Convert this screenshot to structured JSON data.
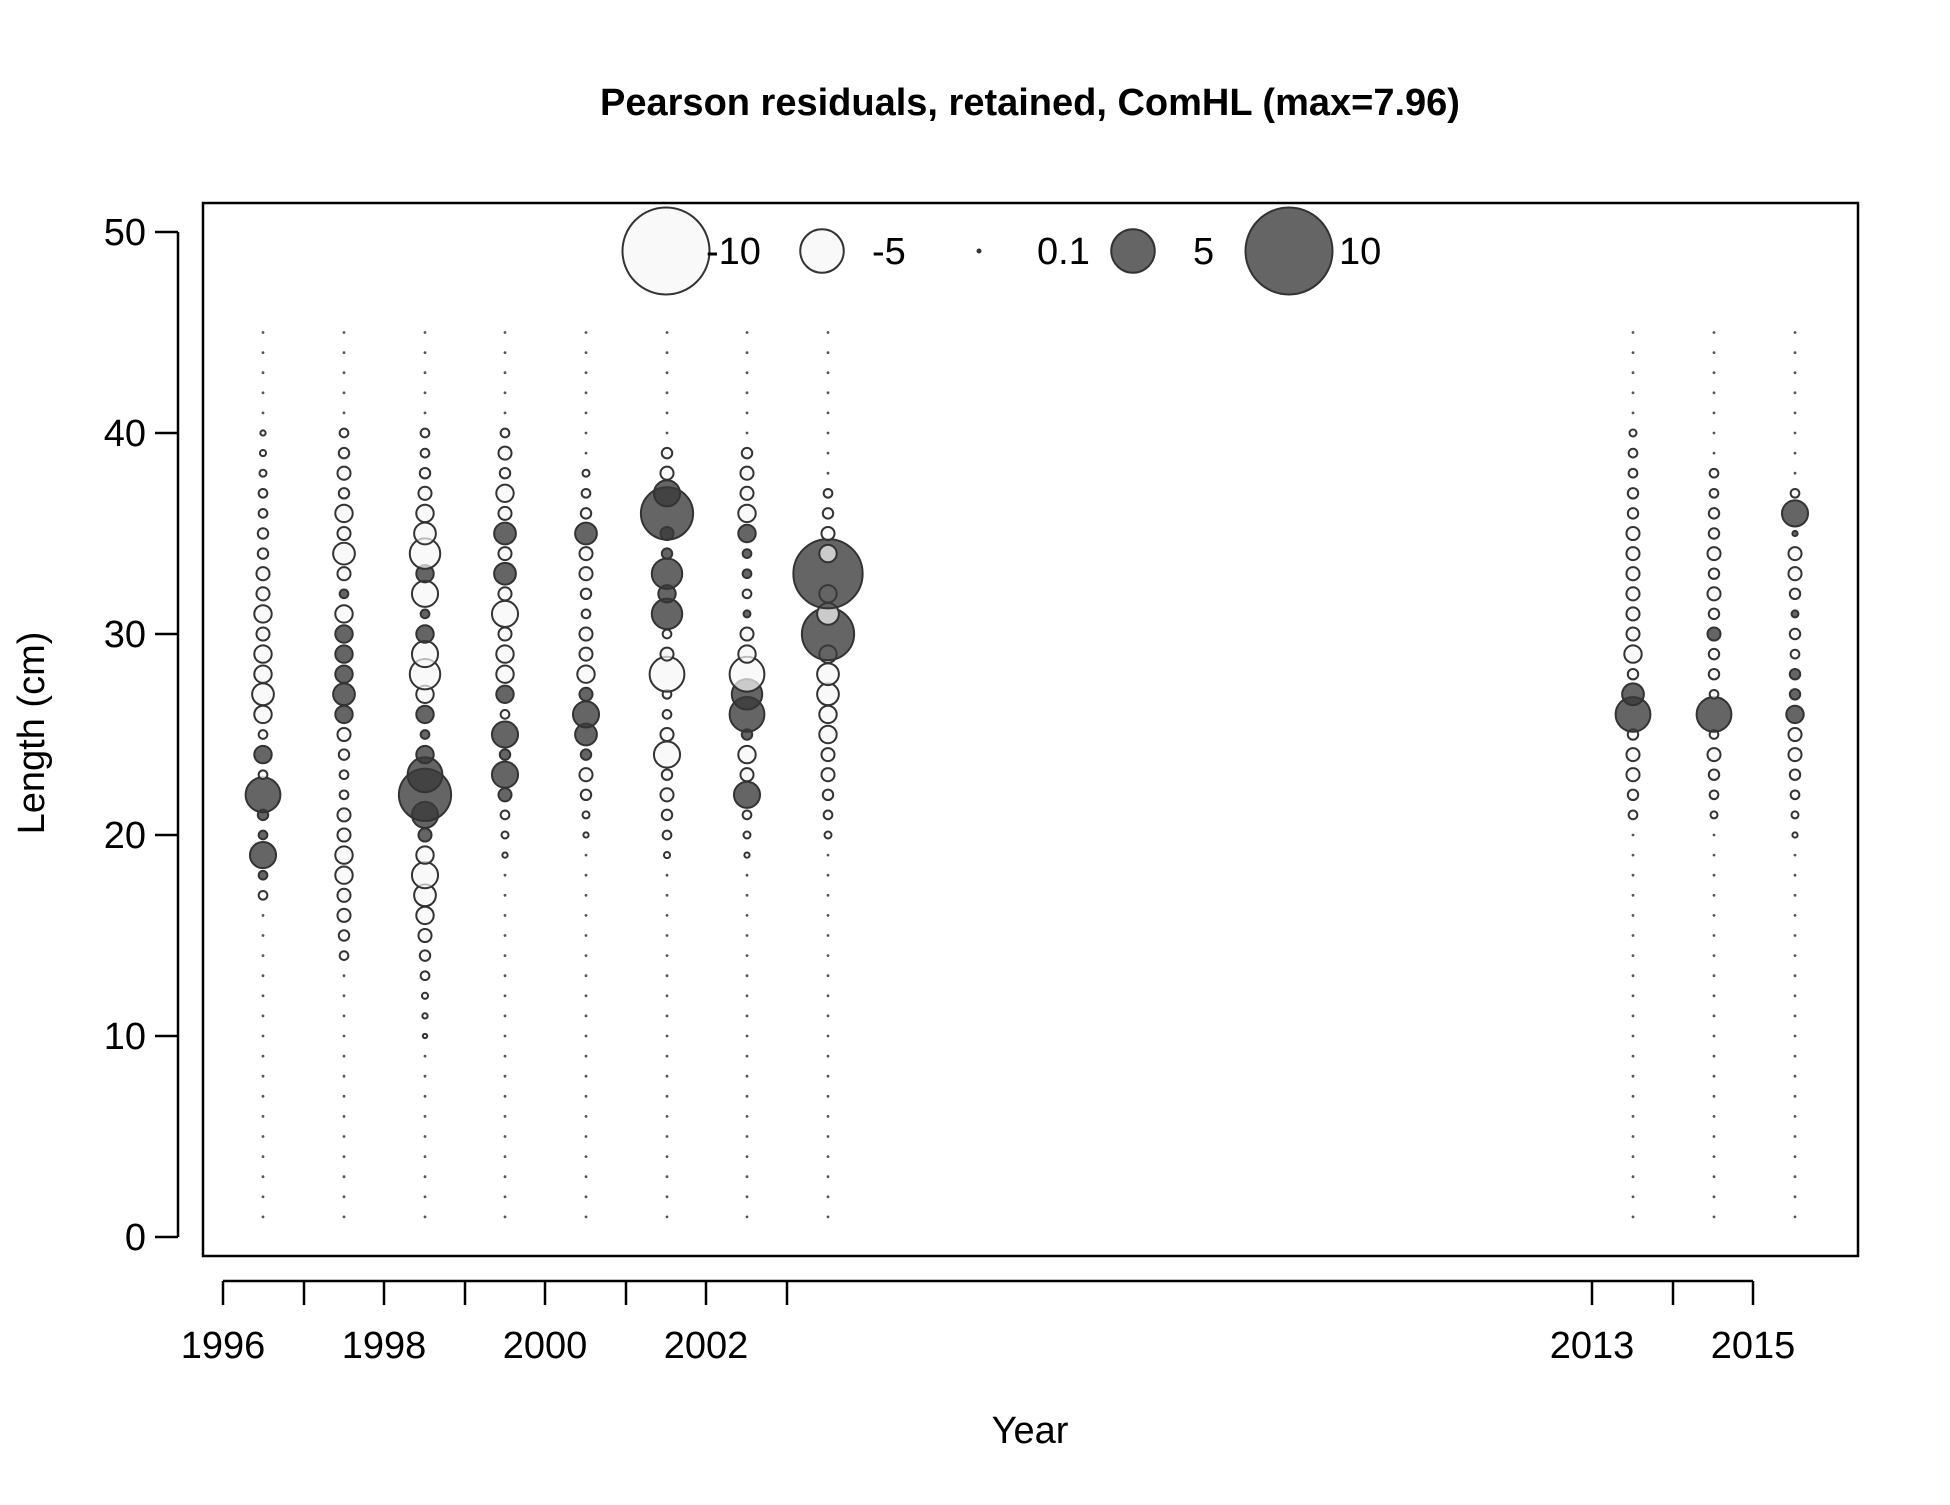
{
  "chart_data": {
    "type": "scatter",
    "title": "Pearson residuals, retained, ComHL (max=7.96)",
    "xlabel": "Year",
    "ylabel": "Length (cm)",
    "ylim": [
      0,
      50
    ],
    "y_ticks": [
      "0",
      "10",
      "20",
      "30",
      "40",
      "50"
    ],
    "x_tick_labels": [
      "1996",
      "1998",
      "2000",
      "2002",
      "2013",
      "2015"
    ],
    "legend": {
      "placement": "top",
      "entries": [
        {
          "label": "-10",
          "value": -10
        },
        {
          "label": "-5",
          "value": -5
        },
        {
          "label": "0.1",
          "value": 0.1
        },
        {
          "label": "5",
          "value": 5
        },
        {
          "label": "10",
          "value": 10
        }
      ]
    },
    "colors": {
      "positive_fill": "#3a3a3a",
      "negative_fill": "#f7f7f7",
      "stroke": "#333333"
    },
    "length_bins": {
      "from": 1,
      "to": 45
    },
    "years": [
      {
        "label": "1996",
        "min": 1,
        "max": 45,
        "resid": {
          "17": -1,
          "18": 1,
          "19": 3,
          "20": 1,
          "21": 1.2,
          "22": 4,
          "23": -1,
          "24": 2,
          "25": -1,
          "26": -2,
          "27": -2.5,
          "28": -2,
          "29": -2,
          "30": -1.5,
          "31": -2,
          "32": -1.5,
          "33": -1.5,
          "34": -1.2,
          "35": -1.2,
          "36": -1,
          "37": -1,
          "38": -0.8,
          "39": -0.7,
          "40": -0.6
        }
      },
      {
        "label": "1997",
        "min": 1,
        "max": 45,
        "resid": {
          "14": -1,
          "15": -1.2,
          "16": -1.5,
          "17": -1.5,
          "18": -2,
          "19": -2,
          "20": -1.5,
          "21": -1.5,
          "22": -1,
          "23": -1,
          "24": -1.2,
          "25": -1.5,
          "26": 2,
          "27": 2.5,
          "28": 2,
          "29": 2,
          "30": 2,
          "31": -2,
          "32": 1,
          "33": -1.5,
          "34": -2.5,
          "35": -1.5,
          "36": -2,
          "37": -1.2,
          "38": -1.5,
          "39": -1.2,
          "40": -1
        }
      },
      {
        "label": "1998",
        "min": 1,
        "max": 45,
        "resid": {
          "10": -0.5,
          "11": -0.6,
          "12": -0.7,
          "13": -1,
          "14": -1.2,
          "15": -1.5,
          "16": -2,
          "17": -2.5,
          "18": -3,
          "19": -2,
          "20": 1.5,
          "21": 3,
          "22": 6,
          "23": 4,
          "24": 2,
          "25": 1,
          "26": 2,
          "27": -2,
          "28": -3.5,
          "29": -3,
          "30": 2,
          "31": 1,
          "32": -3,
          "33": 2,
          "34": -3.5,
          "35": -2.5,
          "36": -2,
          "37": -1.5,
          "38": -1.2,
          "39": -1,
          "40": -1
        }
      },
      {
        "label": "1999",
        "min": 1,
        "max": 45,
        "resid": {
          "19": -0.6,
          "20": -0.8,
          "21": -1,
          "22": 1.5,
          "23": 3,
          "24": 1.2,
          "25": 3,
          "26": -1,
          "27": 2,
          "28": -2,
          "29": -2,
          "30": -1.5,
          "31": -3,
          "32": -1.5,
          "33": 2.5,
          "34": -1.5,
          "35": 2.5,
          "36": -1.5,
          "37": -2,
          "38": -1.2,
          "39": -1.5,
          "40": -1
        }
      },
      {
        "label": "2000",
        "min": 1,
        "max": 45,
        "resid": {
          "20": -0.6,
          "21": -0.8,
          "22": -1.2,
          "23": -1.5,
          "24": 1.2,
          "25": 2.5,
          "26": 3,
          "27": 1.5,
          "28": -2,
          "29": -1.5,
          "30": -1.5,
          "31": -1,
          "32": -1.2,
          "33": -1.5,
          "34": -1.5,
          "35": 2.5,
          "36": -1.2,
          "37": -1,
          "38": -0.8
        }
      },
      {
        "label": "2001",
        "min": 1,
        "max": 45,
        "resid": {
          "19": -0.7,
          "20": -1,
          "21": -1.2,
          "22": -1.5,
          "23": -1.2,
          "24": -3,
          "25": -1.5,
          "26": -1,
          "27": -1,
          "28": -4,
          "29": -1.5,
          "30": -1,
          "31": 3.5,
          "32": 2,
          "33": 3.5,
          "34": 1.2,
          "35": 1.5,
          "36": 6,
          "37": 3,
          "38": -1.5,
          "39": -1.2
        }
      },
      {
        "label": "2002",
        "min": 1,
        "max": 45,
        "resid": {
          "19": -0.6,
          "20": -0.8,
          "21": -1,
          "22": 3,
          "23": -1.5,
          "24": -2,
          "25": 1.2,
          "26": 4,
          "27": 3.5,
          "28": -4,
          "29": -2,
          "30": -1.5,
          "31": 0.8,
          "32": -1,
          "33": 1,
          "34": 1,
          "35": 2,
          "36": -2,
          "37": -1.5,
          "38": -1.5,
          "39": -1.2
        }
      },
      {
        "label": "2003",
        "min": 1,
        "max": 45,
        "resid": {
          "20": -0.8,
          "21": -1,
          "22": -1.2,
          "23": -1.5,
          "24": -1.5,
          "25": -2,
          "26": -2,
          "27": -2.5,
          "28": -2.5,
          "29": -2,
          "30": 6,
          "31": -2.5,
          "32": -2,
          "33": 7.96,
          "34": -2,
          "35": -1.5,
          "36": -1.2,
          "37": -1
        }
      },
      {
        "label": "2013",
        "min": 1,
        "max": 45,
        "resid": {
          "21": -1,
          "22": -1.2,
          "23": -1.5,
          "24": -1.5,
          "25": -1.2,
          "26": 4,
          "27": 2.5,
          "28": -1.2,
          "29": -2,
          "30": -1.5,
          "31": -1.5,
          "32": -1.5,
          "33": -1.5,
          "34": -1.5,
          "35": -1.5,
          "36": -1.2,
          "37": -1.2,
          "38": -1,
          "39": -1,
          "40": -0.8
        }
      },
      {
        "label": "2014",
        "min": 1,
        "max": 45,
        "resid": {
          "21": -0.8,
          "22": -1,
          "23": -1.2,
          "24": -1.5,
          "25": -1,
          "26": 4,
          "27": -1,
          "28": -1.2,
          "29": -1.2,
          "30": 1.5,
          "31": -1.2,
          "32": -1.5,
          "33": -1.2,
          "34": -1.5,
          "35": -1.2,
          "36": -1.2,
          "37": -1,
          "38": -1
        }
      },
      {
        "label": "2015",
        "min": 1,
        "max": 45,
        "resid": {
          "20": -0.6,
          "21": -0.8,
          "22": -1,
          "23": -1.2,
          "24": -1.5,
          "25": -1.5,
          "26": 2,
          "27": 1.2,
          "28": 1.2,
          "29": -1,
          "30": -1.2,
          "31": 0.8,
          "32": -1.2,
          "33": -1.5,
          "34": -1.5,
          "35": 0.6,
          "36": 3,
          "37": -1
        }
      }
    ]
  }
}
